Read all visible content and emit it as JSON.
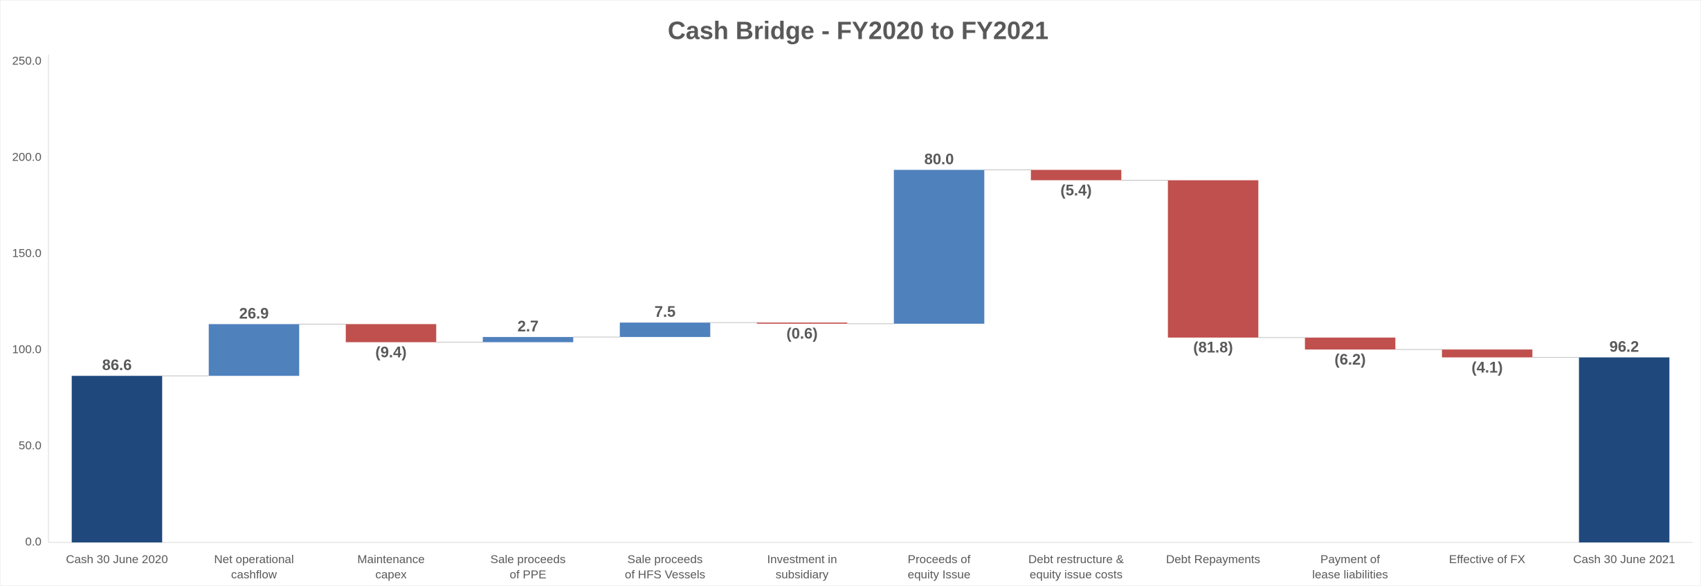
{
  "chart_data": {
    "type": "waterfall",
    "title": "Cash Bridge - FY2020 to FY2021",
    "categories": [
      [
        "Cash 30 June 2020"
      ],
      [
        "Net operational",
        "cashflow"
      ],
      [
        "Maintenance",
        "capex"
      ],
      [
        "Sale proceeds",
        "of PPE"
      ],
      [
        "Sale proceeds",
        "of HFS Vessels"
      ],
      [
        "Investment in",
        "subsidiary"
      ],
      [
        "Proceeds of",
        "equity Issue"
      ],
      [
        "Debt restructure &",
        "equity issue costs"
      ],
      [
        "Debt Repayments"
      ],
      [
        "Payment of",
        "lease liabilities"
      ],
      [
        "Effective of FX"
      ],
      [
        "Cash 30 June 2021"
      ]
    ],
    "values": [
      86.6,
      26.9,
      -9.4,
      2.7,
      7.5,
      -0.6,
      80.0,
      -5.4,
      -81.8,
      -6.2,
      -4.1,
      96.2
    ],
    "value_labels": [
      "86.6",
      "26.9",
      "(9.4)",
      "2.7",
      "7.5",
      "(0.6)",
      "80.0",
      "(5.4)",
      "(81.8)",
      "(6.2)",
      "(4.1)",
      "96.2"
    ],
    "total_color": "#1f497d",
    "increase_color": "#4f81bd",
    "decrease_color": "#c0504d",
    "ylim": [
      0,
      250
    ],
    "yticks": [
      {
        "value": 0,
        "label": "0.0"
      },
      {
        "value": 50,
        "label": "50.0"
      },
      {
        "value": 100,
        "label": "100.0"
      },
      {
        "value": 150,
        "label": "150.0"
      },
      {
        "value": 200,
        "label": "200.0"
      },
      {
        "value": 250,
        "label": "250.0"
      }
    ],
    "grid": false
  }
}
